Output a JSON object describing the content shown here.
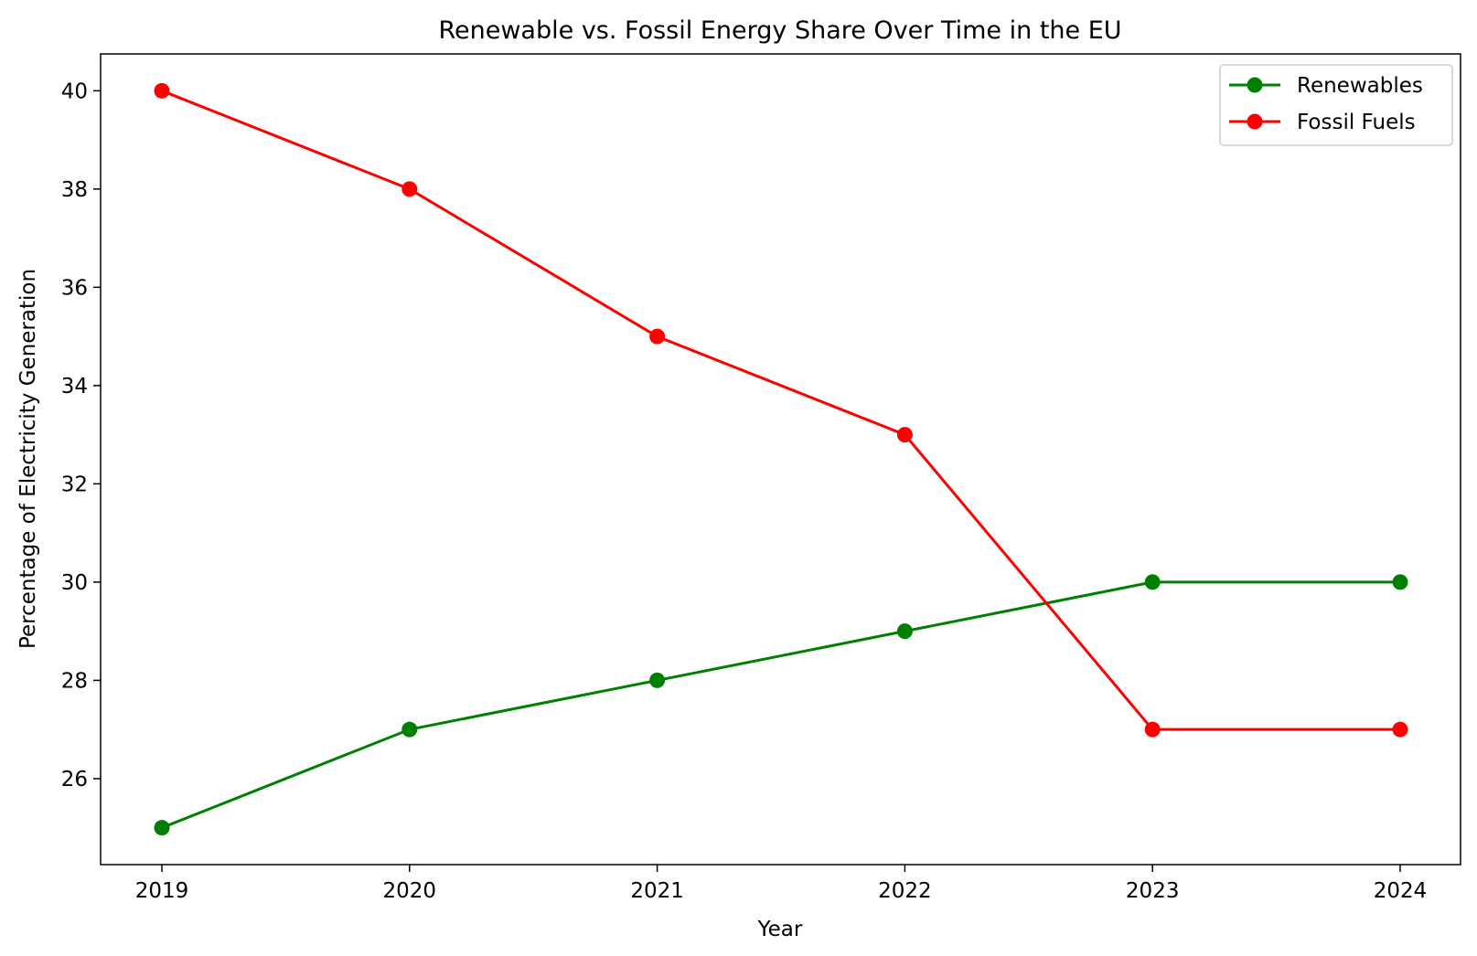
{
  "chart_data": {
    "type": "line",
    "title": "Renewable vs. Fossil Energy Share Over Time in the EU",
    "xlabel": "Year",
    "ylabel": "Percentage of Electricity Generation",
    "categories": [
      "2019",
      "2020",
      "2021",
      "2022",
      "2023",
      "2024"
    ],
    "y_ticks": [
      "26",
      "28",
      "30",
      "32",
      "34",
      "36",
      "38",
      "40"
    ],
    "ylim": [
      24.25,
      40.75
    ],
    "grid": false,
    "legend_position": "top-right",
    "series": [
      {
        "name": "Renewables",
        "color": "#008000",
        "marker": "circle",
        "values": [
          25,
          27,
          28,
          29,
          30,
          30
        ]
      },
      {
        "name": "Fossil Fuels",
        "color": "#ff0000",
        "marker": "circle",
        "values": [
          40,
          38,
          35,
          33,
          27,
          27
        ]
      }
    ]
  }
}
